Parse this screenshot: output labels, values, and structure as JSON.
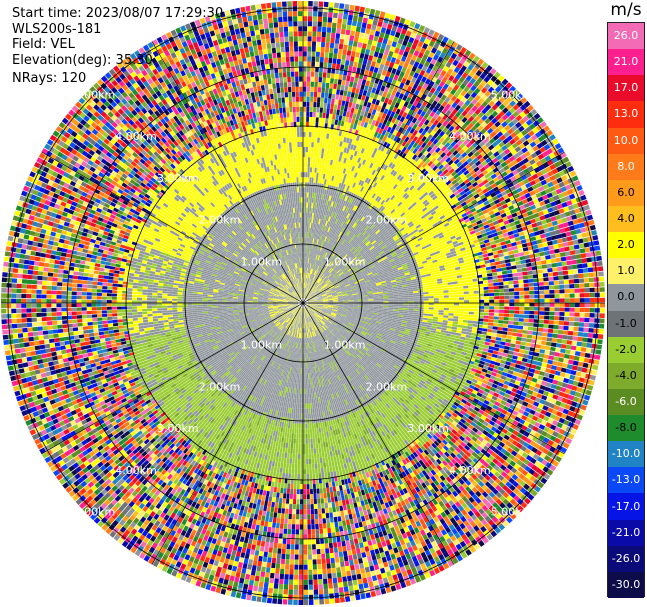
{
  "header": {
    "start_time": "Start time: 2023/08/07 17:29:30",
    "instrument": "WLS200s-181",
    "field": "Field: VEL",
    "elevation": "Elevation(deg): 35.30",
    "nrays": "NRays: 120"
  },
  "colorbar": {
    "unit": "m/s",
    "ticks": [
      "26.0",
      "21.0",
      "17.0",
      "13.0",
      "10.0",
      "8.0",
      "6.0",
      "4.0",
      "2.0",
      "1.0",
      "0.0",
      "-1.0",
      "-2.0",
      "-4.0",
      "-6.0",
      "-8.0",
      "-10.0",
      "-13.0",
      "-17.0",
      "-21.0",
      "-26.0",
      "-30.0"
    ],
    "colors": [
      "#f26bb4",
      "#ff1f8f",
      "#ea0a2a",
      "#ff2d0f",
      "#ff5a14",
      "#ff7a18",
      "#ff9a1a",
      "#ffbe1e",
      "#ffff00",
      "#fff06a",
      "#8f969c",
      "#6e7377",
      "#9acd32",
      "#7eab2c",
      "#5b8c22",
      "#1e8c2c",
      "#1f83c6",
      "#0b49f7",
      "#0615e6",
      "#0a0aa8",
      "#0a0a78",
      "#0d0b4a"
    ]
  },
  "chart_data": {
    "type": "heatmap",
    "projection": "polar PPI",
    "field": "VEL",
    "n_rays": 120,
    "elevation_deg": 35.3,
    "range_ring_labels": [
      "1.00km",
      "2.00km",
      "3.00km",
      "4.00km",
      "5.00km"
    ],
    "value_range": [
      -30.0,
      26.0
    ],
    "summary": "Near-zero velocities (gray) within ~2 km, yellow band (~1-2 m/s) north and green band (~-2 m/s) south near the 3 km ring, noisy multi-colour returns beyond ~3.5 km"
  }
}
